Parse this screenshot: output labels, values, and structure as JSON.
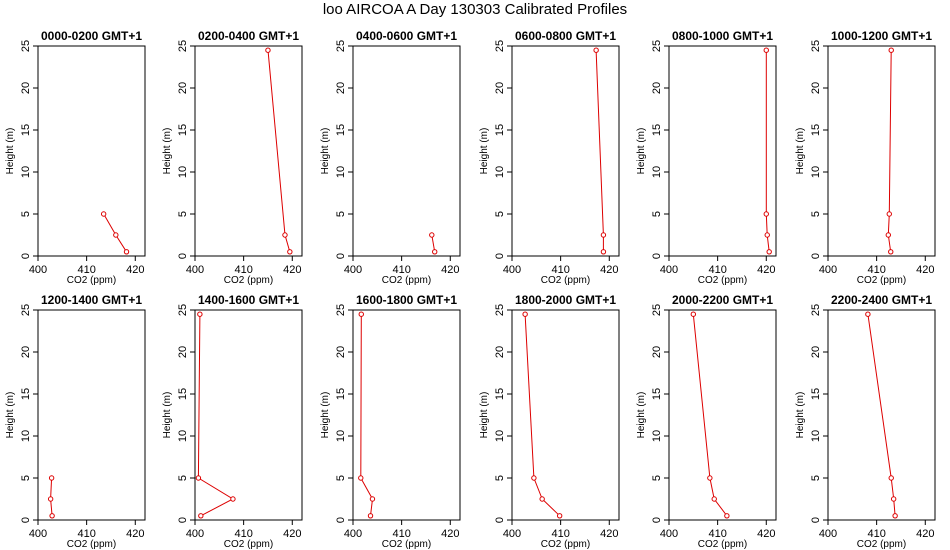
{
  "title": "loo AIRCOA A  Day 130303  Calibrated Profiles",
  "colors": {
    "series": "#dd0000",
    "axis": "#000000",
    "background": "#ffffff"
  },
  "chart_data": [
    {
      "type": "line",
      "title": "0000-0200 GMT+1",
      "xlabel": "CO2 (ppm)",
      "ylabel": "Height (m)",
      "xlim": [
        400,
        422
      ],
      "ylim": [
        0,
        25
      ],
      "xticks": [
        400,
        410,
        420
      ],
      "yticks": [
        0,
        5,
        10,
        15,
        20,
        25
      ],
      "x": [
        413.5,
        416.0,
        418.2
      ],
      "y": [
        5,
        2.5,
        0.5
      ]
    },
    {
      "type": "line",
      "title": "0200-0400 GMT+1",
      "xlabel": "CO2 (ppm)",
      "ylabel": "Height (m)",
      "xlim": [
        400,
        422
      ],
      "ylim": [
        0,
        25
      ],
      "xticks": [
        400,
        410,
        420
      ],
      "yticks": [
        0,
        5,
        10,
        15,
        20,
        25
      ],
      "x": [
        415.0,
        418.5,
        419.5
      ],
      "y": [
        24.5,
        2.5,
        0.5
      ]
    },
    {
      "type": "line",
      "title": "0400-0600 GMT+1",
      "xlabel": "CO2 (ppm)",
      "ylabel": "Height (m)",
      "xlim": [
        400,
        422
      ],
      "ylim": [
        0,
        25
      ],
      "xticks": [
        400,
        410,
        420
      ],
      "yticks": [
        0,
        5,
        10,
        15,
        20,
        25
      ],
      "x": [
        416.2,
        416.8
      ],
      "y": [
        2.5,
        0.5
      ]
    },
    {
      "type": "line",
      "title": "0600-0800 GMT+1",
      "xlabel": "CO2 (ppm)",
      "ylabel": "Height (m)",
      "xlim": [
        400,
        422
      ],
      "ylim": [
        0,
        25
      ],
      "xticks": [
        400,
        410,
        420
      ],
      "yticks": [
        0,
        5,
        10,
        15,
        20,
        25
      ],
      "x": [
        417.3,
        418.8,
        418.8
      ],
      "y": [
        24.5,
        2.5,
        0.5
      ]
    },
    {
      "type": "line",
      "title": "0800-1000 GMT+1",
      "xlabel": "CO2 (ppm)",
      "ylabel": "Height (m)",
      "xlim": [
        400,
        422
      ],
      "ylim": [
        0,
        25
      ],
      "xticks": [
        400,
        410,
        420
      ],
      "yticks": [
        0,
        5,
        10,
        15,
        20,
        25
      ],
      "x": [
        420.0,
        420.0,
        420.2,
        420.6
      ],
      "y": [
        24.5,
        5,
        2.5,
        0.5
      ]
    },
    {
      "type": "line",
      "title": "1000-1200 GMT+1",
      "xlabel": "CO2 (ppm)",
      "ylabel": "Height (m)",
      "xlim": [
        400,
        422
      ],
      "ylim": [
        0,
        25
      ],
      "xticks": [
        400,
        410,
        420
      ],
      "yticks": [
        0,
        5,
        10,
        15,
        20,
        25
      ],
      "x": [
        413.0,
        412.6,
        412.4,
        412.9
      ],
      "y": [
        24.5,
        5,
        2.5,
        0.5
      ]
    },
    {
      "type": "line",
      "title": "1200-1400 GMT+1",
      "xlabel": "CO2 (ppm)",
      "ylabel": "Height (m)",
      "xlim": [
        400,
        422
      ],
      "ylim": [
        0,
        25
      ],
      "xticks": [
        400,
        410,
        420
      ],
      "yticks": [
        0,
        5,
        10,
        15,
        20,
        25
      ],
      "x": [
        402.8,
        402.6,
        402.9
      ],
      "y": [
        5,
        2.5,
        0.5
      ]
    },
    {
      "type": "line",
      "title": "1400-1600 GMT+1",
      "xlabel": "CO2 (ppm)",
      "ylabel": "Height (m)",
      "xlim": [
        400,
        422
      ],
      "ylim": [
        0,
        25
      ],
      "xticks": [
        400,
        410,
        420
      ],
      "yticks": [
        0,
        5,
        10,
        15,
        20,
        25
      ],
      "x": [
        401.0,
        400.7,
        407.8,
        401.2
      ],
      "y": [
        24.5,
        5,
        2.5,
        0.5
      ]
    },
    {
      "type": "line",
      "title": "1600-1800 GMT+1",
      "xlabel": "CO2 (ppm)",
      "ylabel": "Height (m)",
      "xlim": [
        400,
        422
      ],
      "ylim": [
        0,
        25
      ],
      "xticks": [
        400,
        410,
        420
      ],
      "yticks": [
        0,
        5,
        10,
        15,
        20,
        25
      ],
      "x": [
        401.7,
        401.6,
        404.0,
        403.6
      ],
      "y": [
        24.5,
        5,
        2.5,
        0.5
      ]
    },
    {
      "type": "line",
      "title": "1800-2000 GMT+1",
      "xlabel": "CO2 (ppm)",
      "ylabel": "Height (m)",
      "xlim": [
        400,
        422
      ],
      "ylim": [
        0,
        25
      ],
      "xticks": [
        400,
        410,
        420
      ],
      "yticks": [
        0,
        5,
        10,
        15,
        20,
        25
      ],
      "x": [
        402.7,
        404.5,
        406.2,
        409.8
      ],
      "y": [
        24.5,
        5,
        2.5,
        0.5
      ]
    },
    {
      "type": "line",
      "title": "2000-2200 GMT+1",
      "xlabel": "CO2 (ppm)",
      "ylabel": "Height (m)",
      "xlim": [
        400,
        422
      ],
      "ylim": [
        0,
        25
      ],
      "xticks": [
        400,
        410,
        420
      ],
      "yticks": [
        0,
        5,
        10,
        15,
        20,
        25
      ],
      "x": [
        405.0,
        408.4,
        409.3,
        411.9
      ],
      "y": [
        24.5,
        5,
        2.5,
        0.5
      ]
    },
    {
      "type": "line",
      "title": "2200-2400 GMT+1",
      "xlabel": "CO2 (ppm)",
      "ylabel": "Height (m)",
      "xlim": [
        400,
        422
      ],
      "ylim": [
        0,
        25
      ],
      "xticks": [
        400,
        410,
        420
      ],
      "yticks": [
        0,
        5,
        10,
        15,
        20,
        25
      ],
      "x": [
        408.2,
        413.0,
        413.5,
        413.8
      ],
      "y": [
        24.5,
        5,
        2.5,
        0.5
      ]
    }
  ]
}
